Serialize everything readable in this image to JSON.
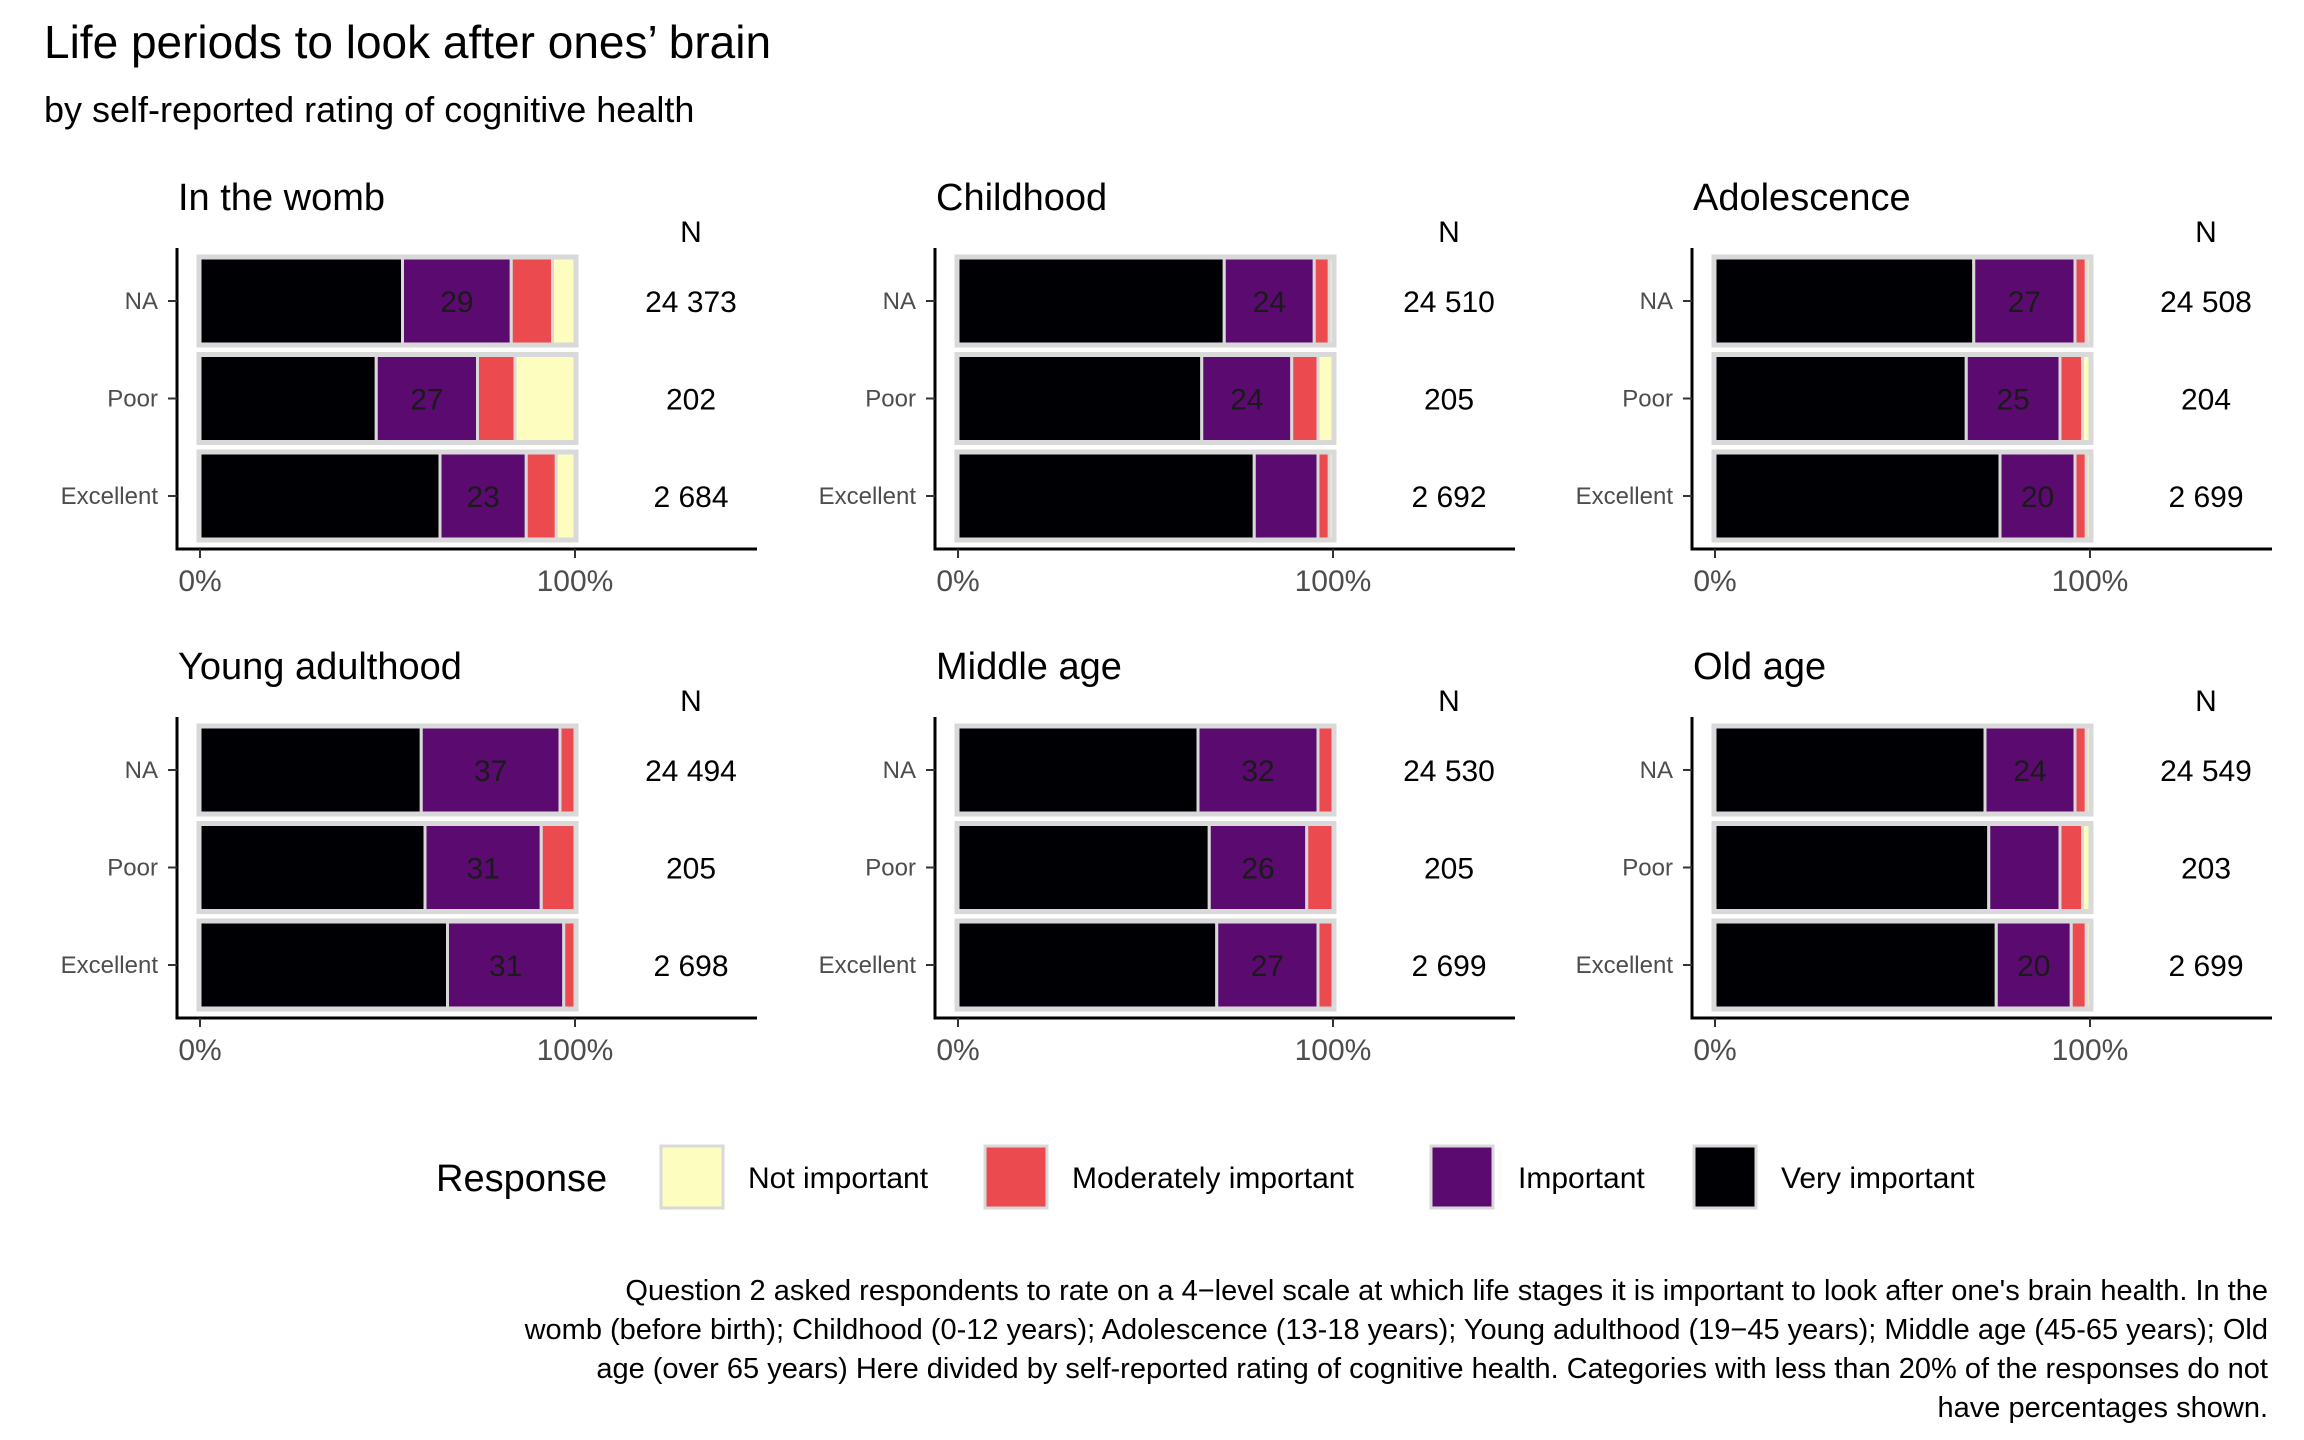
{
  "chart_data": {
    "type": "bar",
    "orientation": "horizontal",
    "stacked": true,
    "title": "Life periods to look after ones’ brain",
    "subtitle": "by self-reported rating of cognitive health",
    "caption_lines": [
      "Question 2 asked respondents to rate on a 4−level scale at which life stages it is important to look after one's brain health. In the",
      "womb (before birth); Childhood (0-12 years); Adolescence (13-18 years); Young adulthood (19−45 years); Middle age (45-65 years); Old",
      "age (over 65 years) Here divided by self-reported rating of cognitive health. Categories with less than 20% of the responses do not",
      "have percentages shown."
    ],
    "x_ticks": [
      "0%",
      "100%"
    ],
    "xlim": [
      0,
      100
    ],
    "n_header": "N",
    "categories": [
      "NA",
      "Poor",
      "Excellent"
    ],
    "legend": {
      "title": "Response",
      "position": "bottom",
      "items": [
        {
          "name": "Not important",
          "color": "#fcfdbf"
        },
        {
          "name": "Moderately important",
          "color": "#eb4a4f"
        },
        {
          "name": "Important",
          "color": "#5b0b6f"
        },
        {
          "name": "Very important",
          "color": "#000004"
        }
      ]
    },
    "panels": [
      {
        "title": "In the womb",
        "rows": [
          {
            "category": "NA",
            "n": "24 373",
            "very": 54,
            "important": 29,
            "moderate": 11,
            "not": 6
          },
          {
            "category": "Poor",
            "n": "202",
            "very": 47,
            "important": 27,
            "moderate": 10,
            "not": 16
          },
          {
            "category": "Excellent",
            "n": "2 684",
            "very": 64,
            "important": 23,
            "moderate": 8,
            "not": 5
          }
        ]
      },
      {
        "title": "Childhood",
        "rows": [
          {
            "category": "NA",
            "n": "24 510",
            "very": 71,
            "important": 24,
            "moderate": 4,
            "not": 1
          },
          {
            "category": "Poor",
            "n": "205",
            "very": 65,
            "important": 24,
            "moderate": 7,
            "not": 4
          },
          {
            "category": "Excellent",
            "n": "2 692",
            "very": 79,
            "important": 17,
            "moderate": 3,
            "not": 1
          }
        ]
      },
      {
        "title": "Adolescence",
        "rows": [
          {
            "category": "NA",
            "n": "24 508",
            "very": 69,
            "important": 27,
            "moderate": 3,
            "not": 1
          },
          {
            "category": "Poor",
            "n": "204",
            "very": 67,
            "important": 25,
            "moderate": 6,
            "not": 2
          },
          {
            "category": "Excellent",
            "n": "2 699",
            "very": 76,
            "important": 20,
            "moderate": 3,
            "not": 1
          }
        ]
      },
      {
        "title": "Young adulthood",
        "rows": [
          {
            "category": "NA",
            "n": "24 494",
            "very": 59,
            "important": 37,
            "moderate": 4,
            "not": 0
          },
          {
            "category": "Poor",
            "n": "205",
            "very": 60,
            "important": 31,
            "moderate": 9,
            "not": 0
          },
          {
            "category": "Excellent",
            "n": "2 698",
            "very": 66,
            "important": 31,
            "moderate": 3,
            "not": 0
          }
        ]
      },
      {
        "title": "Middle age",
        "rows": [
          {
            "category": "NA",
            "n": "24 530",
            "very": 64,
            "important": 32,
            "moderate": 4,
            "not": 0
          },
          {
            "category": "Poor",
            "n": "205",
            "very": 67,
            "important": 26,
            "moderate": 7,
            "not": 0
          },
          {
            "category": "Excellent",
            "n": "2 699",
            "very": 69,
            "important": 27,
            "moderate": 4,
            "not": 0
          }
        ]
      },
      {
        "title": "Old age",
        "rows": [
          {
            "category": "NA",
            "n": "24 549",
            "very": 72,
            "important": 24,
            "moderate": 3,
            "not": 1
          },
          {
            "category": "Poor",
            "n": "203",
            "very": 73,
            "important": 19,
            "moderate": 6,
            "not": 2
          },
          {
            "category": "Excellent",
            "n": "2 699",
            "very": 75,
            "important": 20,
            "moderate": 4,
            "not": 1
          }
        ]
      }
    ]
  }
}
